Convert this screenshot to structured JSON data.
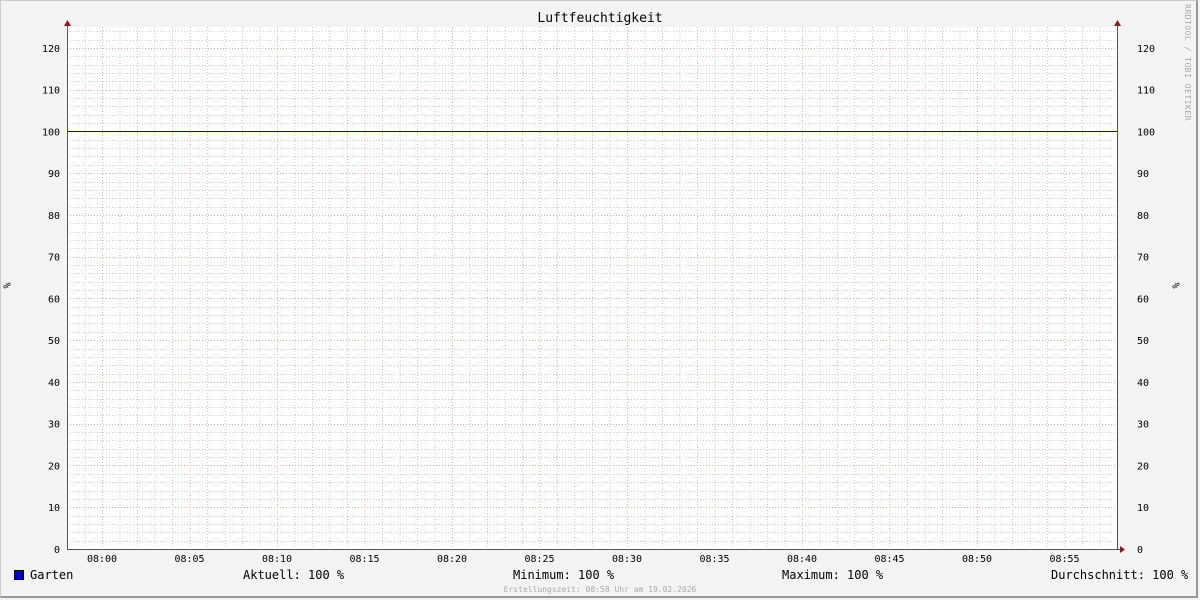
{
  "chart_data": {
    "type": "line",
    "title": "Luftfeuchtigkeit",
    "ylabel": "%",
    "ylabel_right": "%",
    "ylim": [
      0,
      125
    ],
    "yticks": [
      0,
      10,
      20,
      30,
      40,
      50,
      60,
      70,
      80,
      90,
      100,
      110,
      120
    ],
    "xlim": [
      "07:58",
      "08:58"
    ],
    "xticks": [
      "08:00",
      "08:05",
      "08:10",
      "08:15",
      "08:20",
      "08:25",
      "08:30",
      "08:35",
      "08:40",
      "08:45",
      "08:50",
      "08:55"
    ],
    "grid": true,
    "series": [
      {
        "name": "Garten",
        "color": "#0000cc",
        "x": [
          "07:58",
          "08:58"
        ],
        "values": [
          100,
          100
        ]
      }
    ]
  },
  "watermark": "RRDTOOL / TOBI OETIKER",
  "legend": {
    "series_name": "Garten",
    "current": "Aktuell: 100 %",
    "minimum": "Minimum: 100 %",
    "maximum": "Maximum: 100 %",
    "average": "Durchschnitt: 100 %"
  },
  "footer": "Erstellungszeit: 08:58 Uhr am 19.02.2026"
}
